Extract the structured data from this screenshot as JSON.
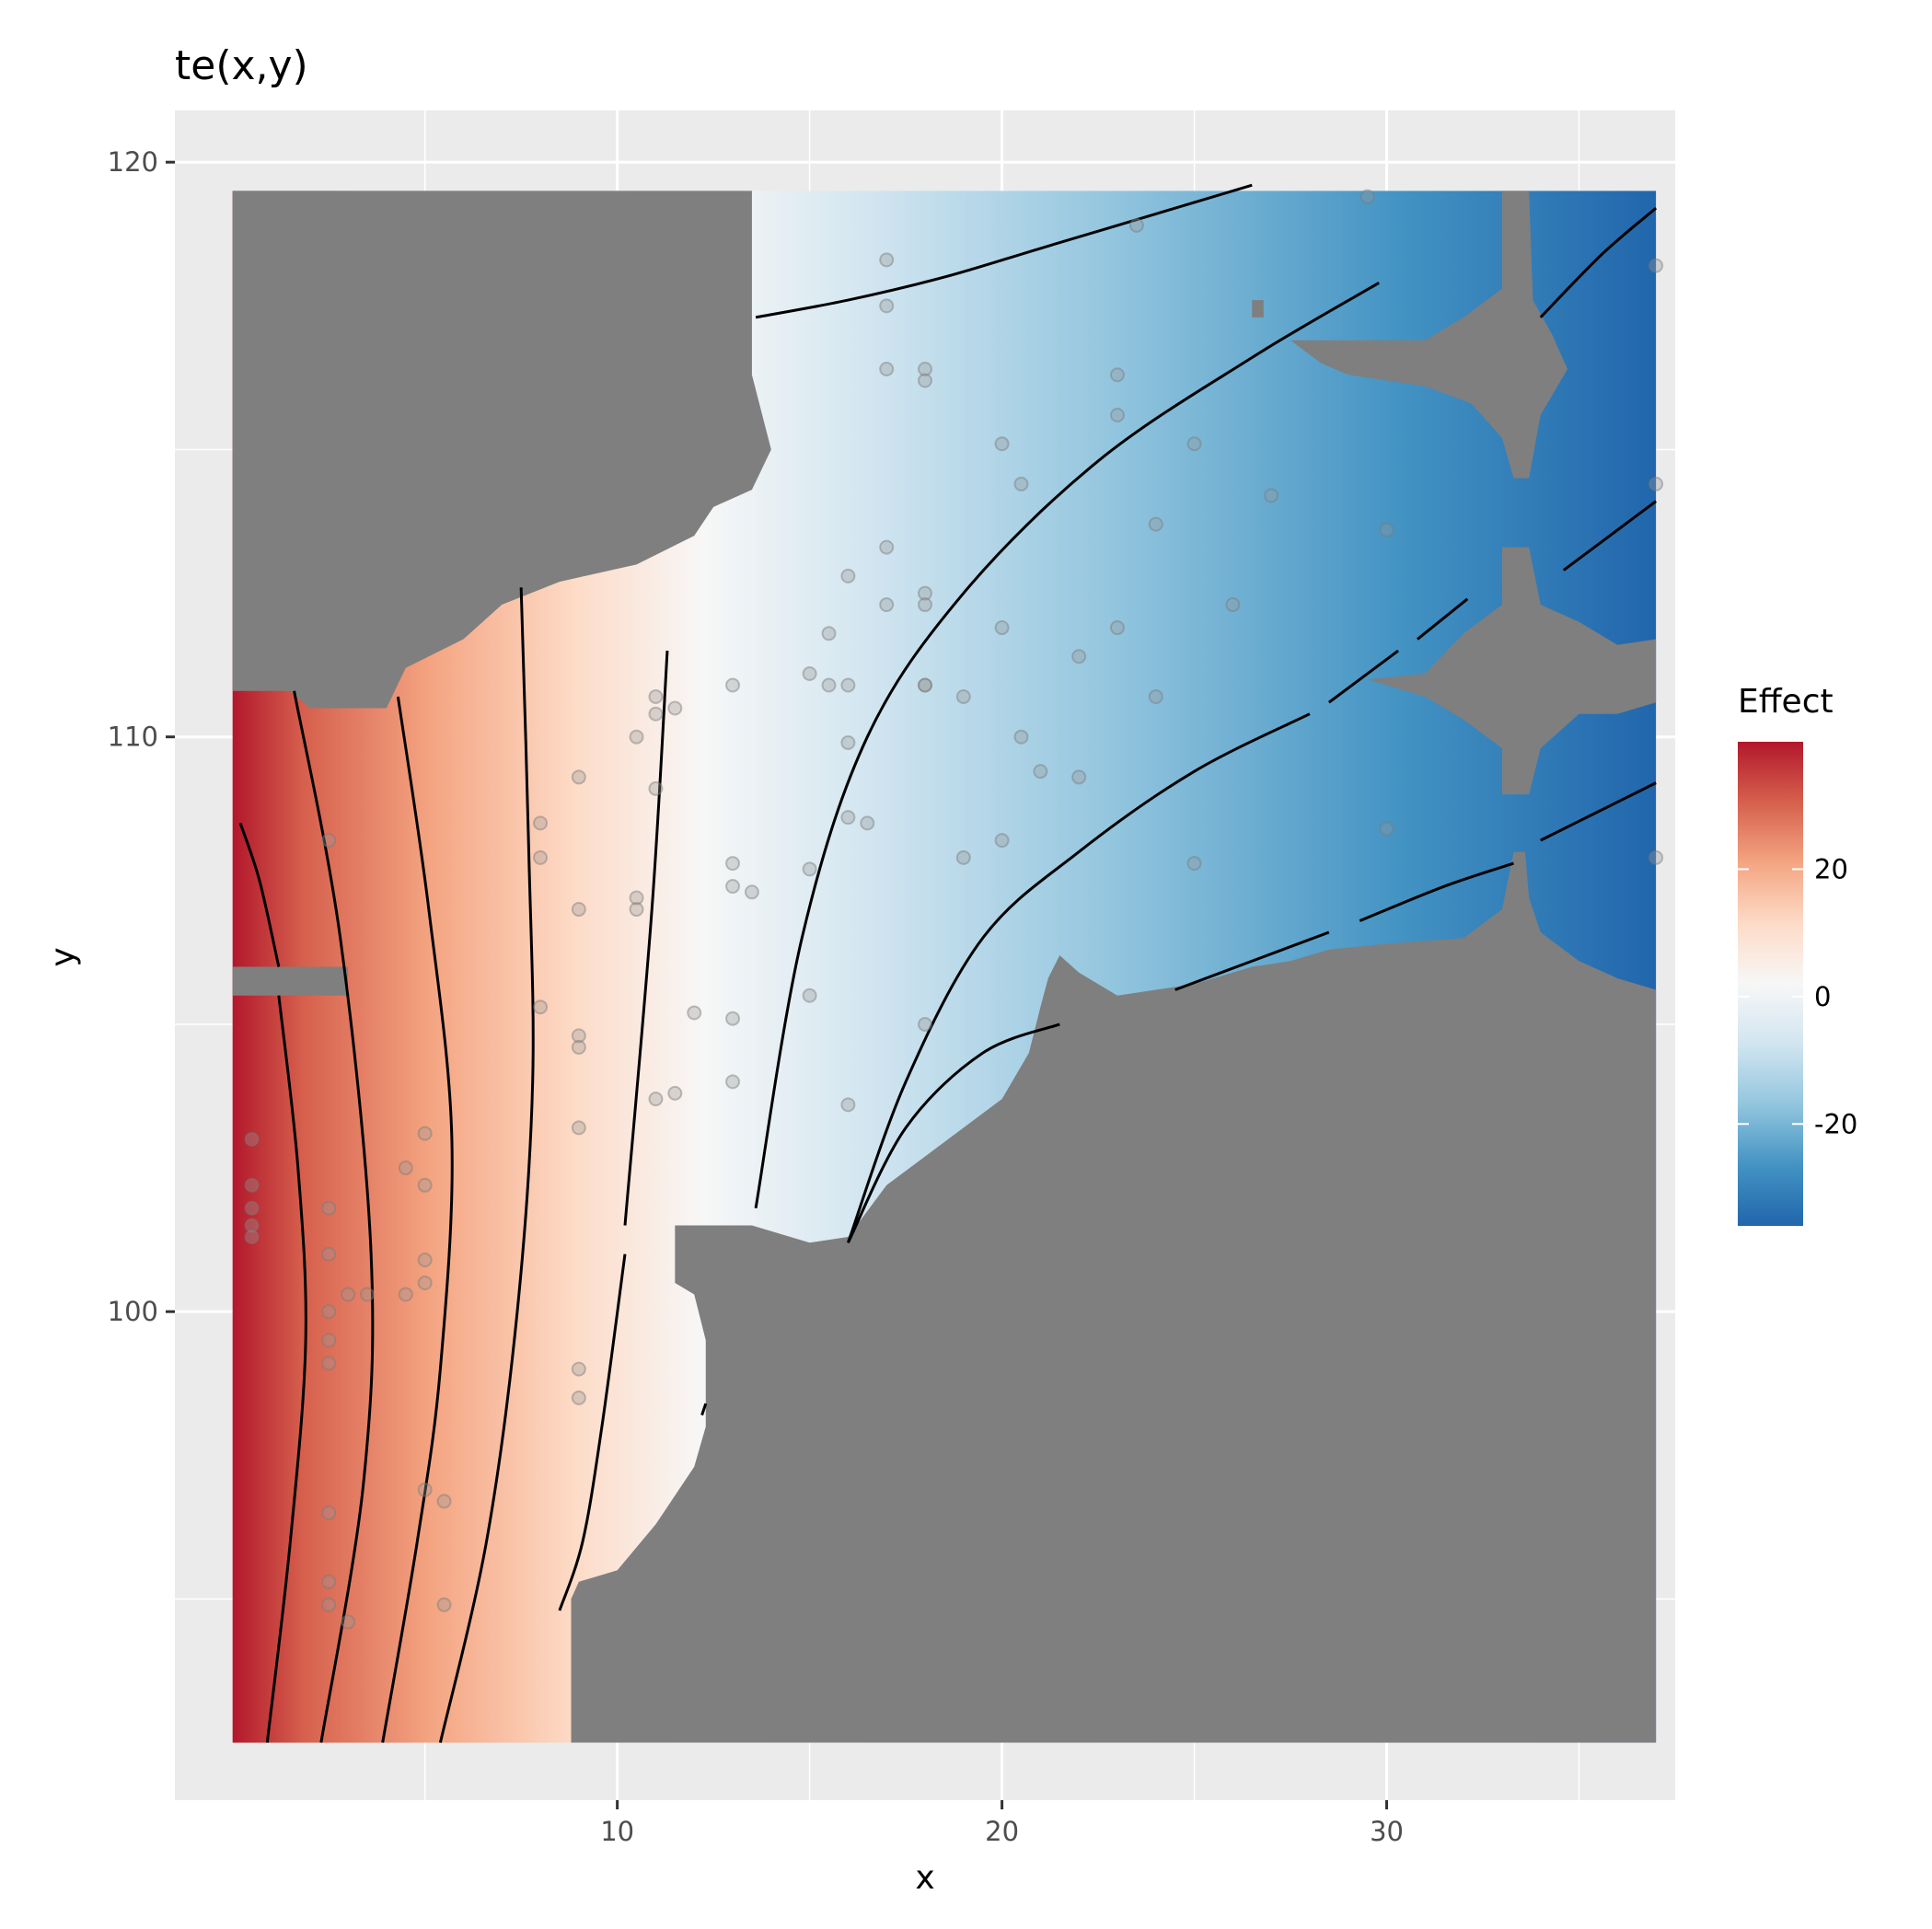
{
  "chart_data": {
    "type": "heatmap",
    "title": "te(x,y)",
    "xlabel": "x",
    "ylabel": "y",
    "xlim": [
      -1.5,
      37.5
    ],
    "ylim": [
      91.5,
      120.9
    ],
    "x_ticks": [
      10,
      20,
      30
    ],
    "y_ticks": [
      100,
      110,
      120
    ],
    "grid": true,
    "legend": {
      "title": "Effect",
      "position": "right",
      "ticks": [
        20,
        0,
        -20
      ],
      "range": [
        -36,
        40
      ],
      "colors": [
        "#2166ac",
        "#4393c3",
        "#92c5de",
        "#d1e5f0",
        "#f7f7f7",
        "#fddbc7",
        "#f4a582",
        "#d6604d",
        "#b2182b"
      ]
    },
    "colors": {
      "panel": "#ebebeb",
      "grid": "#ffffff",
      "missing": "#7f7f7f",
      "contour": "#000000",
      "points": "#999999"
    },
    "contours": [
      {
        "level": 30,
        "points": [
          [
            0.2,
            108.5
          ],
          [
            0.7,
            107.5
          ],
          [
            1.2,
            106
          ]
        ]
      },
      {
        "level": 30,
        "points": [
          [
            1.2,
            105.5
          ],
          [
            1.7,
            102.5
          ],
          [
            1.9,
            99.5
          ],
          [
            1.5,
            96
          ],
          [
            0.9,
            92.5
          ]
        ]
      },
      {
        "level": 20,
        "points": [
          [
            1.6,
            110.8
          ],
          [
            2.8,
            106.5
          ],
          [
            3.6,
            101
          ],
          [
            3.4,
            97
          ],
          [
            2.3,
            92.5
          ]
        ]
      },
      {
        "level": 10,
        "points": [
          [
            4.3,
            110.7
          ],
          [
            5.1,
            107
          ],
          [
            5.7,
            103
          ],
          [
            5.4,
            99
          ],
          [
            4.8,
            96
          ],
          [
            3.9,
            92.5
          ]
        ]
      },
      {
        "level": 0,
        "points": [
          [
            7.5,
            112.6
          ],
          [
            7.7,
            108
          ],
          [
            7.8,
            104
          ],
          [
            7.4,
            100
          ],
          [
            6.6,
            96
          ],
          [
            5.4,
            92.5
          ]
        ]
      },
      {
        "level": -10,
        "points": [
          [
            10.2,
            101.5
          ],
          [
            10.9,
            107
          ],
          [
            11.3,
            111.5
          ]
        ]
      },
      {
        "level": -10,
        "points": [
          [
            10.2,
            101
          ],
          [
            9.6,
            98
          ],
          [
            9.1,
            96
          ],
          [
            8.5,
            94.8
          ]
        ]
      },
      {
        "level": -10,
        "points": [
          [
            12.2,
            98.2
          ],
          [
            12.3,
            98.4
          ]
        ]
      },
      {
        "level": -10,
        "points": [
          [
            13.6,
            117.3
          ],
          [
            16,
            117.6
          ],
          [
            18.5,
            118
          ],
          [
            21,
            118.5
          ],
          [
            24,
            119.1
          ],
          [
            26.5,
            119.6
          ]
        ]
      },
      {
        "level": -20,
        "points": [
          [
            13.6,
            101.8
          ],
          [
            14.8,
            106.5
          ],
          [
            16.5,
            110
          ],
          [
            19,
            112.5
          ],
          [
            22.5,
            114.8
          ],
          [
            26.5,
            116.6
          ],
          [
            29.8,
            117.9
          ]
        ]
      },
      {
        "level": -20,
        "points": [
          [
            34,
            117.3
          ],
          [
            35.6,
            118.4
          ],
          [
            37,
            119.2
          ]
        ]
      },
      {
        "level": -30,
        "points": [
          [
            16,
            101.2
          ],
          [
            17.5,
            104
          ],
          [
            19.5,
            106.5
          ],
          [
            22,
            108
          ],
          [
            25,
            109.4
          ],
          [
            28,
            110.4
          ]
        ]
      },
      {
        "level": -30,
        "points": [
          [
            28.5,
            110.6
          ],
          [
            30.3,
            111.5
          ]
        ]
      },
      {
        "level": -30,
        "points": [
          [
            30.8,
            111.7
          ],
          [
            32.1,
            112.4
          ]
        ]
      },
      {
        "level": -30,
        "points": [
          [
            34.6,
            112.9
          ],
          [
            36,
            113.6
          ],
          [
            37,
            114.1
          ]
        ]
      },
      {
        "level": -40,
        "points": [
          [
            16,
            101.2
          ],
          [
            17.5,
            103.2
          ],
          [
            19.5,
            104.5
          ],
          [
            21.5,
            105
          ]
        ]
      },
      {
        "level": -40,
        "points": [
          [
            24.5,
            105.6
          ],
          [
            26.5,
            106.1
          ],
          [
            28.5,
            106.6
          ]
        ]
      },
      {
        "level": -40,
        "points": [
          [
            29.3,
            106.8
          ],
          [
            31.5,
            107.4
          ],
          [
            33.3,
            107.8
          ]
        ]
      },
      {
        "level": -40,
        "points": [
          [
            34,
            108.2
          ],
          [
            35.5,
            108.7
          ],
          [
            37,
            109.2
          ]
        ]
      }
    ],
    "points": [
      [
        17,
        118.3
      ],
      [
        17,
        117.5
      ],
      [
        23.5,
        118.9
      ],
      [
        29.5,
        119.4
      ],
      [
        37,
        118.2
      ],
      [
        17,
        116.4
      ],
      [
        18,
        116.4
      ],
      [
        18,
        116.2
      ],
      [
        23,
        116.3
      ],
      [
        23,
        115.6
      ],
      [
        20,
        115.1
      ],
      [
        25,
        115.1
      ],
      [
        20.5,
        114.4
      ],
      [
        27,
        114.2
      ],
      [
        37,
        114.4
      ],
      [
        24,
        113.7
      ],
      [
        30,
        113.6
      ],
      [
        17,
        113.3
      ],
      [
        16,
        112.8
      ],
      [
        17,
        112.3
      ],
      [
        18,
        112.5
      ],
      [
        18,
        112.3
      ],
      [
        26,
        112.3
      ],
      [
        20,
        111.9
      ],
      [
        23,
        111.9
      ],
      [
        15.5,
        111.8
      ],
      [
        22,
        111.4
      ],
      [
        15,
        111.1
      ],
      [
        13,
        110.9
      ],
      [
        15.5,
        110.9
      ],
      [
        16,
        110.9
      ],
      [
        18,
        110.9
      ],
      [
        18,
        110.9
      ],
      [
        11,
        110.7
      ],
      [
        11,
        110.4
      ],
      [
        11.5,
        110.5
      ],
      [
        19,
        110.7
      ],
      [
        24,
        110.7
      ],
      [
        10.5,
        110
      ],
      [
        16,
        109.9
      ],
      [
        20.5,
        110
      ],
      [
        9,
        109.3
      ],
      [
        11,
        109.1
      ],
      [
        21,
        109.4
      ],
      [
        22,
        109.3
      ],
      [
        8,
        108.5
      ],
      [
        16,
        108.6
      ],
      [
        16.5,
        108.5
      ],
      [
        30,
        108.4
      ],
      [
        2.5,
        108.2
      ],
      [
        8,
        107.9
      ],
      [
        19,
        107.9
      ],
      [
        20,
        108.2
      ],
      [
        37,
        107.9
      ],
      [
        13,
        107.8
      ],
      [
        15,
        107.7
      ],
      [
        25,
        107.8
      ],
      [
        13,
        107.4
      ],
      [
        13.5,
        107.3
      ],
      [
        10.5,
        107.2
      ],
      [
        10.5,
        107
      ],
      [
        9,
        107
      ],
      [
        8,
        105.3
      ],
      [
        12,
        105.2
      ],
      [
        15,
        105.5
      ],
      [
        13,
        105.1
      ],
      [
        9,
        104.8
      ],
      [
        9,
        104.6
      ],
      [
        18,
        105
      ],
      [
        11,
        103.7
      ],
      [
        11.5,
        103.8
      ],
      [
        16,
        103.6
      ],
      [
        13,
        104
      ],
      [
        9,
        103.2
      ],
      [
        5,
        103.1
      ],
      [
        0.5,
        103
      ],
      [
        4.5,
        102.5
      ],
      [
        0.5,
        102.2
      ],
      [
        0.5,
        101.8
      ],
      [
        2.5,
        101.8
      ],
      [
        5,
        102.2
      ],
      [
        0.5,
        101.5
      ],
      [
        0.5,
        101.3
      ],
      [
        2.5,
        101
      ],
      [
        5,
        100.9
      ],
      [
        3,
        100.3
      ],
      [
        3.5,
        100.3
      ],
      [
        4.5,
        100.3
      ],
      [
        5,
        100.5
      ],
      [
        2.5,
        100
      ],
      [
        2.5,
        99.5
      ],
      [
        2.5,
        99.1
      ],
      [
        9,
        99
      ],
      [
        9,
        98.5
      ],
      [
        5,
        96.9
      ],
      [
        5.5,
        96.7
      ],
      [
        2.5,
        96.5
      ],
      [
        2.5,
        95.3
      ],
      [
        2.5,
        94.9
      ],
      [
        3,
        94.6
      ],
      [
        5.5,
        94.9
      ]
    ],
    "missing_regions": [
      [
        [
          0,
          119.5
        ],
        [
          13.5,
          119.5
        ],
        [
          13.5,
          116.3
        ],
        [
          14,
          115
        ],
        [
          13.5,
          114.3
        ],
        [
          12.5,
          114
        ],
        [
          12,
          113.5
        ],
        [
          10.5,
          113
        ],
        [
          8.5,
          112.7
        ],
        [
          7,
          112.3
        ],
        [
          6,
          111.7
        ],
        [
          4.5,
          111.2
        ],
        [
          4,
          110.5
        ],
        [
          2,
          110.5
        ],
        [
          1.5,
          110.8
        ],
        [
          0,
          110.8
        ]
      ],
      [
        [
          0,
          106
        ],
        [
          3,
          106
        ],
        [
          3,
          105.5
        ],
        [
          0,
          105.5
        ]
      ],
      [
        [
          12.5,
          113.8
        ],
        [
          12.5,
          113.8
        ]
      ],
      [
        [
          26.5,
          117.6
        ],
        [
          26.8,
          117.6
        ],
        [
          26.8,
          117.3
        ],
        [
          26.5,
          117.3
        ]
      ],
      [
        [
          27.5,
          116.9
        ],
        [
          31,
          116.9
        ],
        [
          32,
          117.3
        ],
        [
          33,
          117.8
        ],
        [
          33,
          119.5
        ],
        [
          33.7,
          119.5
        ],
        [
          33.8,
          117.6
        ],
        [
          34.3,
          117
        ],
        [
          34.7,
          116.4
        ],
        [
          34,
          115.6
        ],
        [
          33.7,
          114.5
        ],
        [
          33.3,
          114.5
        ],
        [
          33,
          115.2
        ],
        [
          32.2,
          115.8
        ],
        [
          31,
          116.1
        ],
        [
          29,
          116.3
        ],
        [
          28.3,
          116.5
        ]
      ],
      [
        [
          29.5,
          111
        ],
        [
          31,
          111.1
        ],
        [
          32,
          111.8
        ],
        [
          33,
          112.3
        ],
        [
          33,
          113.3
        ],
        [
          33.7,
          113.3
        ],
        [
          34,
          112.3
        ],
        [
          35,
          112
        ],
        [
          36,
          111.6
        ],
        [
          37,
          111.7
        ],
        [
          37,
          110.6
        ],
        [
          36,
          110.4
        ],
        [
          35,
          110.4
        ],
        [
          34,
          109.8
        ],
        [
          33.7,
          109
        ],
        [
          33,
          109
        ],
        [
          33,
          109.8
        ],
        [
          32,
          110.3
        ],
        [
          31,
          110.7
        ]
      ],
      [
        [
          8.8,
          92.5
        ],
        [
          37,
          92.5
        ],
        [
          37,
          105.6
        ],
        [
          36,
          105.8
        ],
        [
          35,
          106.1
        ],
        [
          34,
          106.6
        ],
        [
          33.7,
          107.2
        ],
        [
          33.6,
          108
        ],
        [
          33.3,
          108
        ],
        [
          33,
          107
        ],
        [
          32,
          106.5
        ],
        [
          30,
          106.4
        ],
        [
          28.5,
          106.3
        ],
        [
          27.5,
          106.1
        ],
        [
          26.5,
          106
        ],
        [
          25,
          105.7
        ],
        [
          24,
          105.6
        ],
        [
          23,
          105.5
        ],
        [
          22,
          105.9
        ],
        [
          21.5,
          106.2
        ],
        [
          21.2,
          105.8
        ],
        [
          21,
          105.3
        ],
        [
          20.7,
          104.5
        ],
        [
          20,
          103.7
        ],
        [
          19,
          103.2
        ],
        [
          18,
          102.7
        ],
        [
          17,
          102.2
        ],
        [
          16,
          101.3
        ],
        [
          15,
          101.2
        ],
        [
          14,
          101.4
        ],
        [
          13.5,
          101.5
        ],
        [
          11.5,
          101.5
        ],
        [
          11.5,
          100.5
        ],
        [
          12,
          100.3
        ],
        [
          12.3,
          99.5
        ],
        [
          12.3,
          98
        ],
        [
          12,
          97.3
        ],
        [
          11,
          96.3
        ],
        [
          10,
          95.5
        ],
        [
          9,
          95.3
        ],
        [
          8.8,
          95
        ]
      ]
    ]
  }
}
